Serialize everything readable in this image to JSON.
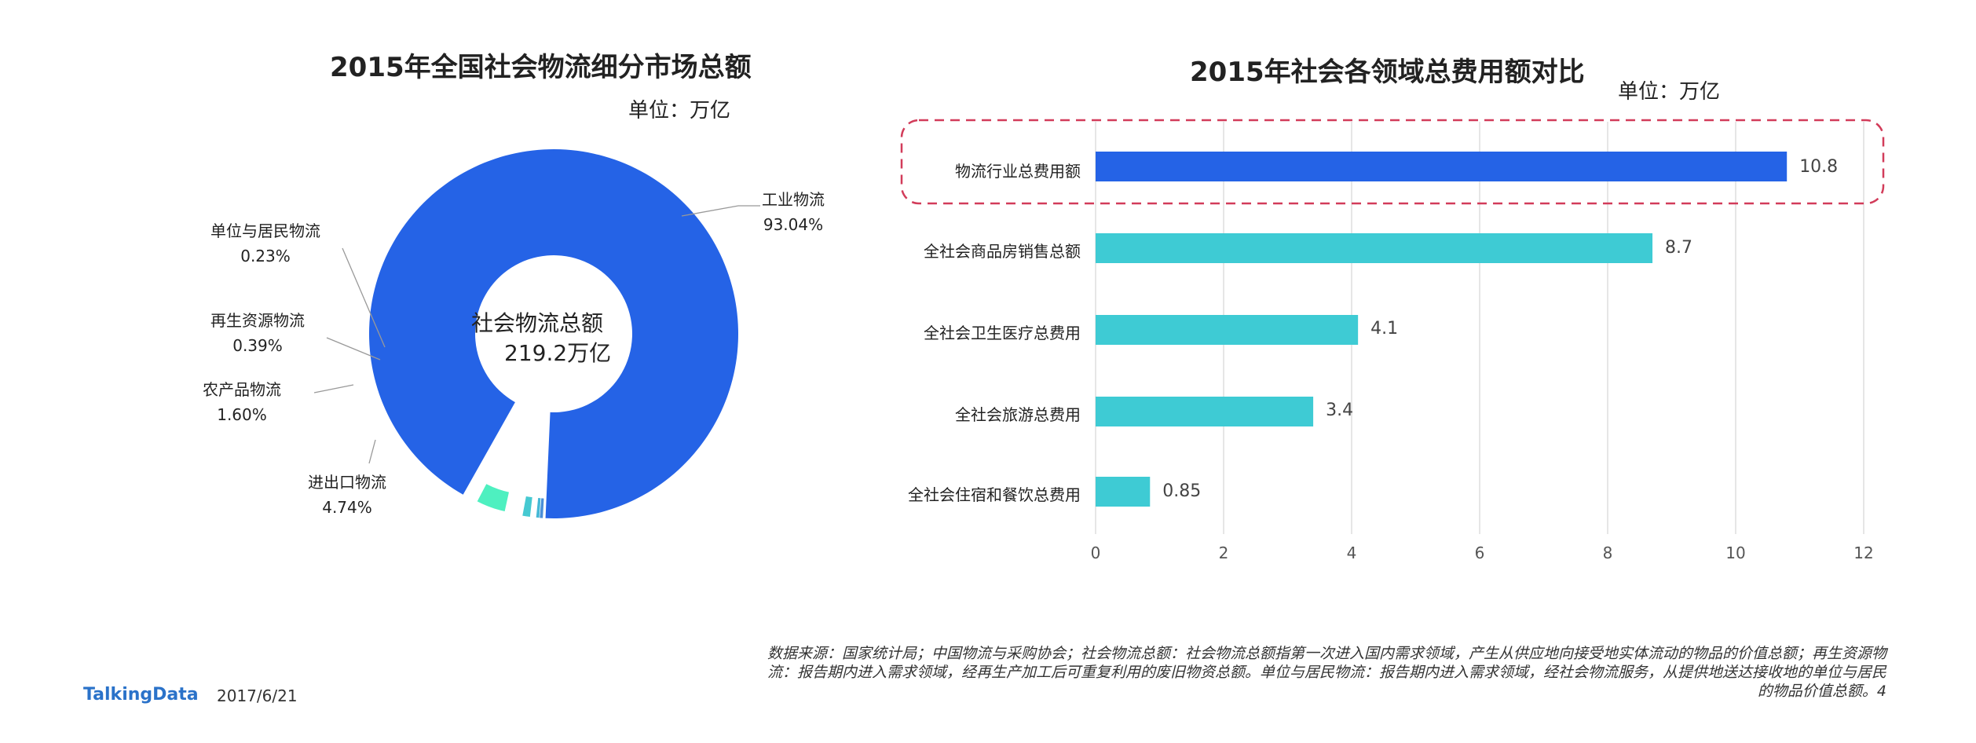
{
  "left_chart": {
    "title": "2015年全国社会物流细分市场总额",
    "unit": "单位：万亿",
    "center_label": "社会物流总额",
    "center_value": "219.2万亿"
  },
  "right_chart": {
    "title": "2015年社会各领域总费用额对比",
    "unit": "单位：万亿"
  },
  "chart_data": [
    {
      "type": "pie",
      "title": "2015年全国社会物流细分市场总额",
      "categories": [
        "工业物流",
        "单位与居民物流",
        "再生资源物流",
        "农产品物流",
        "进出口物流"
      ],
      "values": [
        93.04,
        0.23,
        0.39,
        1.6,
        4.74
      ],
      "value_labels": [
        "93.04%",
        "0.23%",
        "0.39%",
        "1.60%",
        "4.74%"
      ],
      "colors": [
        "#2563e6",
        "#4a8fd8",
        "#45b8d6",
        "#46c9d1",
        "#4ef0c0"
      ]
    },
    {
      "type": "bar",
      "orientation": "horizontal",
      "title": "2015年社会各领域总费用额对比",
      "categories": [
        "物流行业总费用额",
        "全社会商品房销售总额",
        "全社会卫生医疗总费用",
        "全社会旅游总费用",
        "全社会住宿和餐饮总费用"
      ],
      "values": [
        10.8,
        8.7,
        4.1,
        3.4,
        0.85
      ],
      "value_labels": [
        "10.8",
        "8.7",
        "4.1",
        "3.4",
        "0.85"
      ],
      "colors": [
        "#2563e6",
        "#3ecbd4",
        "#3ecbd4",
        "#3ecbd4",
        "#3ecbd4"
      ],
      "xlim": [
        0,
        12
      ],
      "xticks": [
        "0",
        "2",
        "4",
        "6",
        "8",
        "10",
        "12"
      ],
      "grid": true,
      "highlight": "物流行业总费用额"
    }
  ],
  "footer": {
    "source": "数据来源：国家统计局；中国物流与采购协会；社会物流总额：社会物流总额指第一次进入国内需求领域，产生从供应地向接受地实体流动的物品的价值总额；再生资源物流：报告期内进入需求领域，经再生产加工后可重复利用的废旧物资总额。单位与居民物流：报告期内进入需求领域，经社会物流服务，从提供地送达接收地的单位与居民的物品价值总额。",
    "page": "4",
    "logo": "TalkingData",
    "date": "2017/6/21"
  }
}
